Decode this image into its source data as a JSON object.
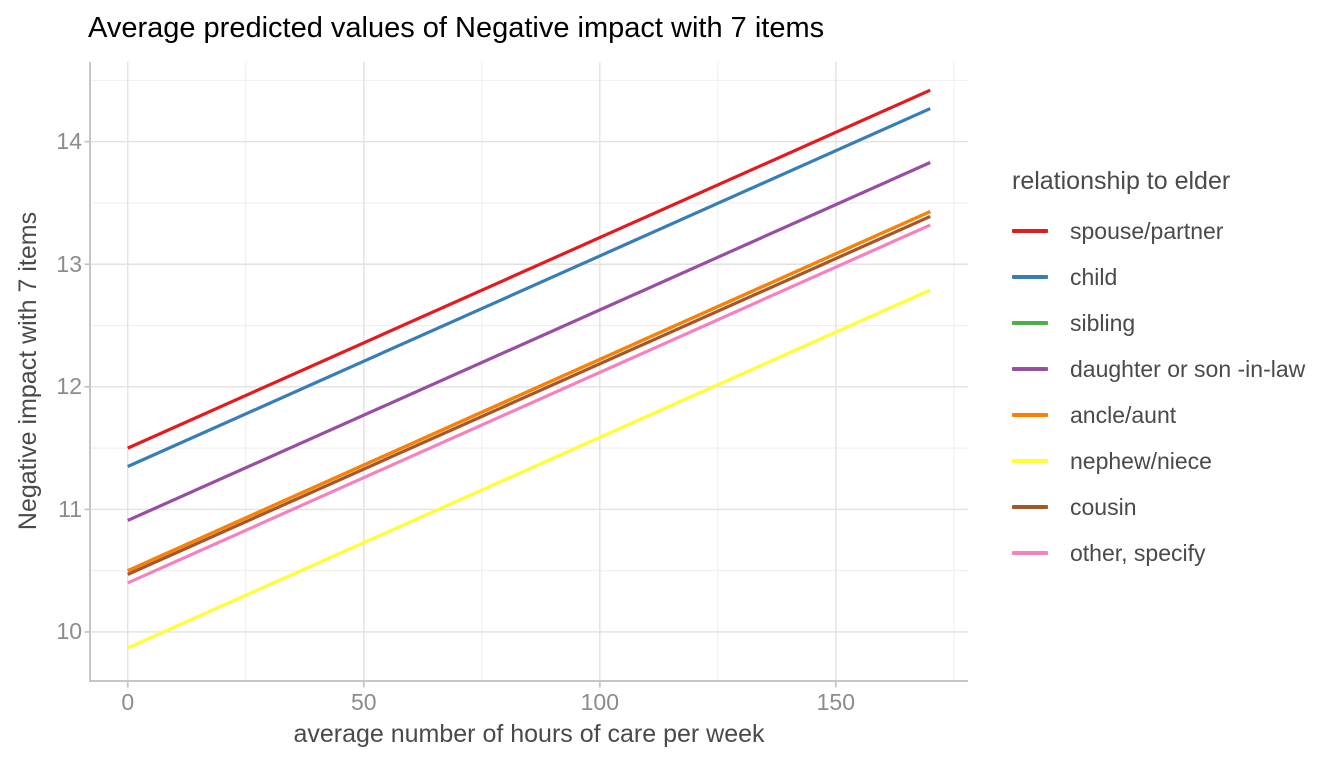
{
  "chart_data": {
    "type": "line",
    "title": "Average predicted values of Negative impact with 7 items",
    "xlabel": "average number of hours of care per week",
    "ylabel": "Negative impact with 7 items",
    "legend_title": "relationship to elder",
    "legend_position": "right",
    "grid": "on",
    "x_ticks": [
      0,
      50,
      100,
      150
    ],
    "x_minor_ticks": [
      25,
      75,
      125,
      175
    ],
    "y_ticks": [
      10,
      11,
      12,
      13,
      14
    ],
    "y_minor_ticks": [
      10.5,
      11.5,
      12.5,
      13.5,
      14.5
    ],
    "xlim": [
      -8,
      178
    ],
    "ylim": [
      9.6,
      14.65
    ],
    "x_data_range": [
      0,
      170
    ],
    "series": [
      {
        "name": "spouse/partner",
        "color": "#E41A1C",
        "y_start": 11.5,
        "y_end": 14.42
      },
      {
        "name": "child",
        "color": "#377EB8",
        "y_start": 11.35,
        "y_end": 14.27
      },
      {
        "name": "sibling",
        "color": "#4DAF4A",
        "y_start": 10.5,
        "y_end": 13.43
      },
      {
        "name": "daughter or son -in-law",
        "color": "#984EA3",
        "y_start": 10.91,
        "y_end": 13.83
      },
      {
        "name": "ancle/aunt",
        "color": "#FF7F00",
        "y_start": 10.5,
        "y_end": 13.43
      },
      {
        "name": "nephew/niece",
        "color": "#FFFF33",
        "y_start": 9.87,
        "y_end": 12.79
      },
      {
        "name": "cousin",
        "color": "#A65628",
        "y_start": 10.47,
        "y_end": 13.39
      },
      {
        "name": "other, specify",
        "color": "#F781BF",
        "y_start": 10.4,
        "y_end": 13.32
      }
    ],
    "draw_order": [
      "sibling",
      "cousin",
      "ancle/aunt",
      "spouse/partner",
      "child",
      "daughter or son -in-law",
      "nephew/niece",
      "other, specify"
    ],
    "colors": {
      "title_text": "#000000",
      "axis_title_text": "#4a4a4a",
      "tick_label_text": "#8c8c8c",
      "legend_text": "#4a4a4a",
      "grid_major": "#e2e2e2",
      "grid_minor": "#efefef",
      "axis_line": "#c6c6c6",
      "background": "#ffffff"
    }
  }
}
